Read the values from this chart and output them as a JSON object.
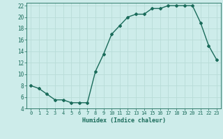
{
  "x": [
    0,
    1,
    2,
    3,
    4,
    5,
    6,
    7,
    8,
    9,
    10,
    11,
    12,
    13,
    14,
    15,
    16,
    17,
    18,
    19,
    20,
    21,
    22,
    23
  ],
  "y": [
    8,
    7.5,
    6.5,
    5.5,
    5.5,
    5,
    5,
    5,
    10.5,
    13.5,
    17,
    18.5,
    20,
    20.5,
    20.5,
    21.5,
    21.5,
    22,
    22,
    22,
    22,
    19,
    15,
    12.5
  ],
  "xlabel": "Humidex (Indice chaleur)",
  "ylim": [
    4,
    22.5
  ],
  "xlim": [
    -0.5,
    23.5
  ],
  "yticks": [
    4,
    6,
    8,
    10,
    12,
    14,
    16,
    18,
    20,
    22
  ],
  "xticks": [
    0,
    1,
    2,
    3,
    4,
    5,
    6,
    7,
    8,
    9,
    10,
    11,
    12,
    13,
    14,
    15,
    16,
    17,
    18,
    19,
    20,
    21,
    22,
    23
  ],
  "line_color": "#1a6b5a",
  "bg_color": "#cdecea",
  "grid_color": "#b8dcd8",
  "tick_color": "#1a6b5a",
  "label_color": "#1a6b5a",
  "marker": "D",
  "marker_size": 2.0,
  "line_width": 1.0,
  "xlabel_fontsize": 6.0,
  "tick_fontsize_x": 5.0,
  "tick_fontsize_y": 5.5
}
